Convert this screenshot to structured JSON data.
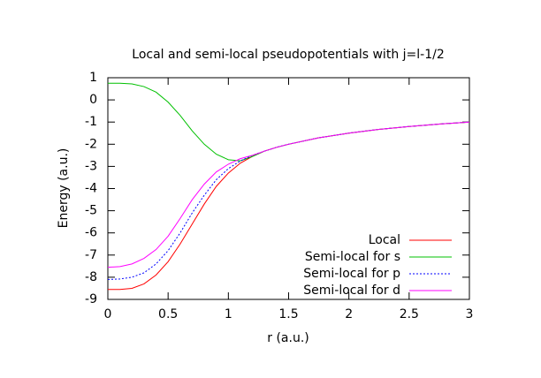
{
  "chart_data": {
    "type": "line",
    "title": "Local and semi-local pseudopotentials with j=l-1/2",
    "x_label": "r (a.u.)",
    "y_label": "Energy (a.u.)",
    "x": [
      0,
      0.1,
      0.2,
      0.3,
      0.4,
      0.5,
      0.6,
      0.7,
      0.8,
      0.9,
      1.0,
      1.1,
      1.2,
      1.3,
      1.4,
      1.5,
      1.75,
      2,
      2.25,
      2.5,
      2.75,
      3
    ],
    "series": [
      {
        "name": "Local",
        "color": "#ff0000",
        "values": [
          -8.55,
          -8.55,
          -8.5,
          -8.3,
          -7.9,
          -7.3,
          -6.5,
          -5.6,
          -4.7,
          -3.9,
          -3.3,
          -2.85,
          -2.55,
          -2.31,
          -2.14,
          -2.0,
          -1.71,
          -1.5,
          -1.33,
          -1.2,
          -1.09,
          -1.0
        ]
      },
      {
        "name": "Semi-local for s",
        "color": "#00c000",
        "values": [
          0.75,
          0.75,
          0.72,
          0.6,
          0.35,
          -0.1,
          -0.7,
          -1.4,
          -2.0,
          -2.45,
          -2.7,
          -2.75,
          -2.55,
          -2.31,
          -2.14,
          -2.0,
          -1.71,
          -1.5,
          -1.33,
          -1.2,
          -1.09,
          -1.0
        ]
      },
      {
        "name": "Semi-local for p",
        "color": "#0000ff",
        "values": [
          -8.1,
          -8.08,
          -8.0,
          -7.8,
          -7.4,
          -6.8,
          -6.0,
          -5.1,
          -4.3,
          -3.6,
          -3.1,
          -2.75,
          -2.5,
          -2.31,
          -2.14,
          -2.0,
          -1.71,
          -1.5,
          -1.33,
          -1.2,
          -1.09,
          -1.0
        ]
      },
      {
        "name": "Semi-local for d",
        "color": "#ff00ff",
        "values": [
          -7.55,
          -7.52,
          -7.4,
          -7.15,
          -6.75,
          -6.15,
          -5.35,
          -4.5,
          -3.8,
          -3.25,
          -2.9,
          -2.65,
          -2.5,
          -2.31,
          -2.14,
          -2.0,
          -1.71,
          -1.5,
          -1.33,
          -1.2,
          -1.09,
          -1.0
        ]
      }
    ],
    "xlim": [
      0,
      3
    ],
    "xticks": [
      0,
      0.5,
      1,
      1.5,
      2,
      2.5,
      3
    ],
    "ylim": [
      -9,
      1
    ],
    "yticks": [
      -9,
      -8,
      -7,
      -6,
      -5,
      -4,
      -3,
      -2,
      -1,
      0,
      1
    ],
    "legend": "lower-right"
  }
}
